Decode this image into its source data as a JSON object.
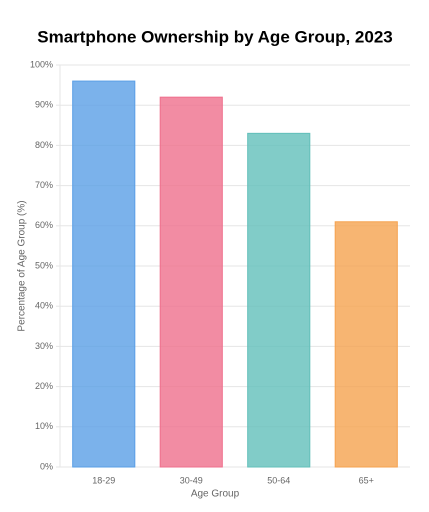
{
  "chart_data": {
    "type": "bar",
    "title": "Smartphone Ownership by Age Group, 2023",
    "x_label": "Age Group",
    "y_label": "Percentage of Age Group (%)",
    "categories": [
      "18-29",
      "30-49",
      "50-64",
      "65+"
    ],
    "values": [
      96,
      92,
      83,
      61
    ],
    "colors": [
      "#5a9fe6",
      "#ef6f8c",
      "#62bfba",
      "#f5a24f"
    ],
    "ylim": [
      0,
      100
    ],
    "yticks": [
      {
        "value": 0,
        "label": "0%"
      },
      {
        "value": 10,
        "label": "10%"
      },
      {
        "value": 20,
        "label": "20%"
      },
      {
        "value": 30,
        "label": "30%"
      },
      {
        "value": 40,
        "label": "40%"
      },
      {
        "value": 50,
        "label": "50%"
      },
      {
        "value": 60,
        "label": "60%"
      },
      {
        "value": 70,
        "label": "70%"
      },
      {
        "value": 80,
        "label": "80%"
      },
      {
        "value": 90,
        "label": "90%"
      },
      {
        "value": 100,
        "label": "100%"
      }
    ],
    "grid": true
  }
}
